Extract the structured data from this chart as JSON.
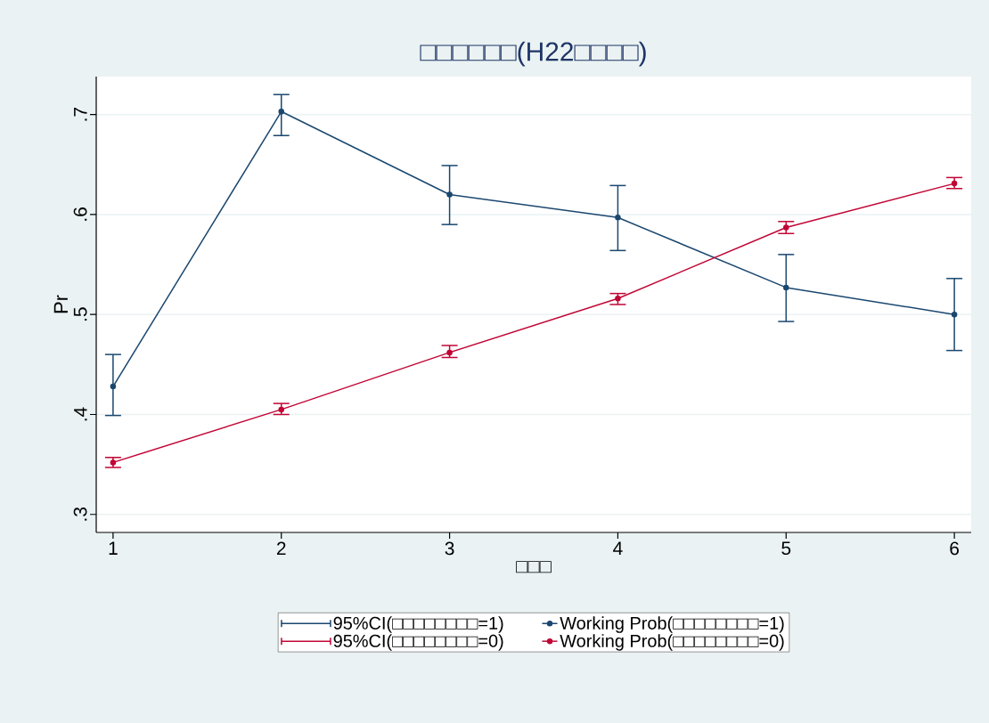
{
  "chart_data": {
    "type": "line",
    "title": "□□□□□□(H22□□□□)",
    "xlabel": "□□□",
    "ylabel": "Pr",
    "x": [
      1,
      2,
      3,
      4,
      5,
      6
    ],
    "series": [
      {
        "name": "Working Prob(□□□□□□□□=1)",
        "color": "#1a476f",
        "values": [
          0.428,
          0.703,
          0.62,
          0.597,
          0.527,
          0.5
        ],
        "errors": [
          [
            0.399,
            0.46
          ],
          [
            0.679,
            0.72
          ],
          [
            0.59,
            0.649
          ],
          [
            0.564,
            0.629
          ],
          [
            0.493,
            0.56
          ],
          [
            0.464,
            0.536
          ]
        ]
      },
      {
        "name": "Working Prob(□□□□□□□□=0)",
        "color": "#c10534",
        "values": [
          0.352,
          0.405,
          0.462,
          0.516,
          0.587,
          0.631
        ],
        "errors": [
          [
            0.347,
            0.357
          ],
          [
            0.4,
            0.411
          ],
          [
            0.457,
            0.469
          ],
          [
            0.51,
            0.521
          ],
          [
            0.581,
            0.593
          ],
          [
            0.626,
            0.637
          ]
        ]
      }
    ],
    "annotations": [
      "95%CI(□□□□□□□□=1)",
      "95%CI(□□□□□□□□=0)"
    ],
    "xlim": [
      0.9,
      6.1
    ],
    "ylim": [
      0.282,
      0.738
    ],
    "xticks": [
      1,
      2,
      3,
      4,
      5,
      6
    ],
    "yticks": [
      {
        "value": 0.3,
        "label": ".3"
      },
      {
        "value": 0.4,
        "label": ".4"
      },
      {
        "value": 0.5,
        "label": ".5"
      },
      {
        "value": 0.6,
        "label": ".6"
      },
      {
        "value": 0.7,
        "label": ".7"
      }
    ],
    "grid": "y",
    "legend": "bottom",
    "marker": "circle",
    "line_style": "solid"
  }
}
